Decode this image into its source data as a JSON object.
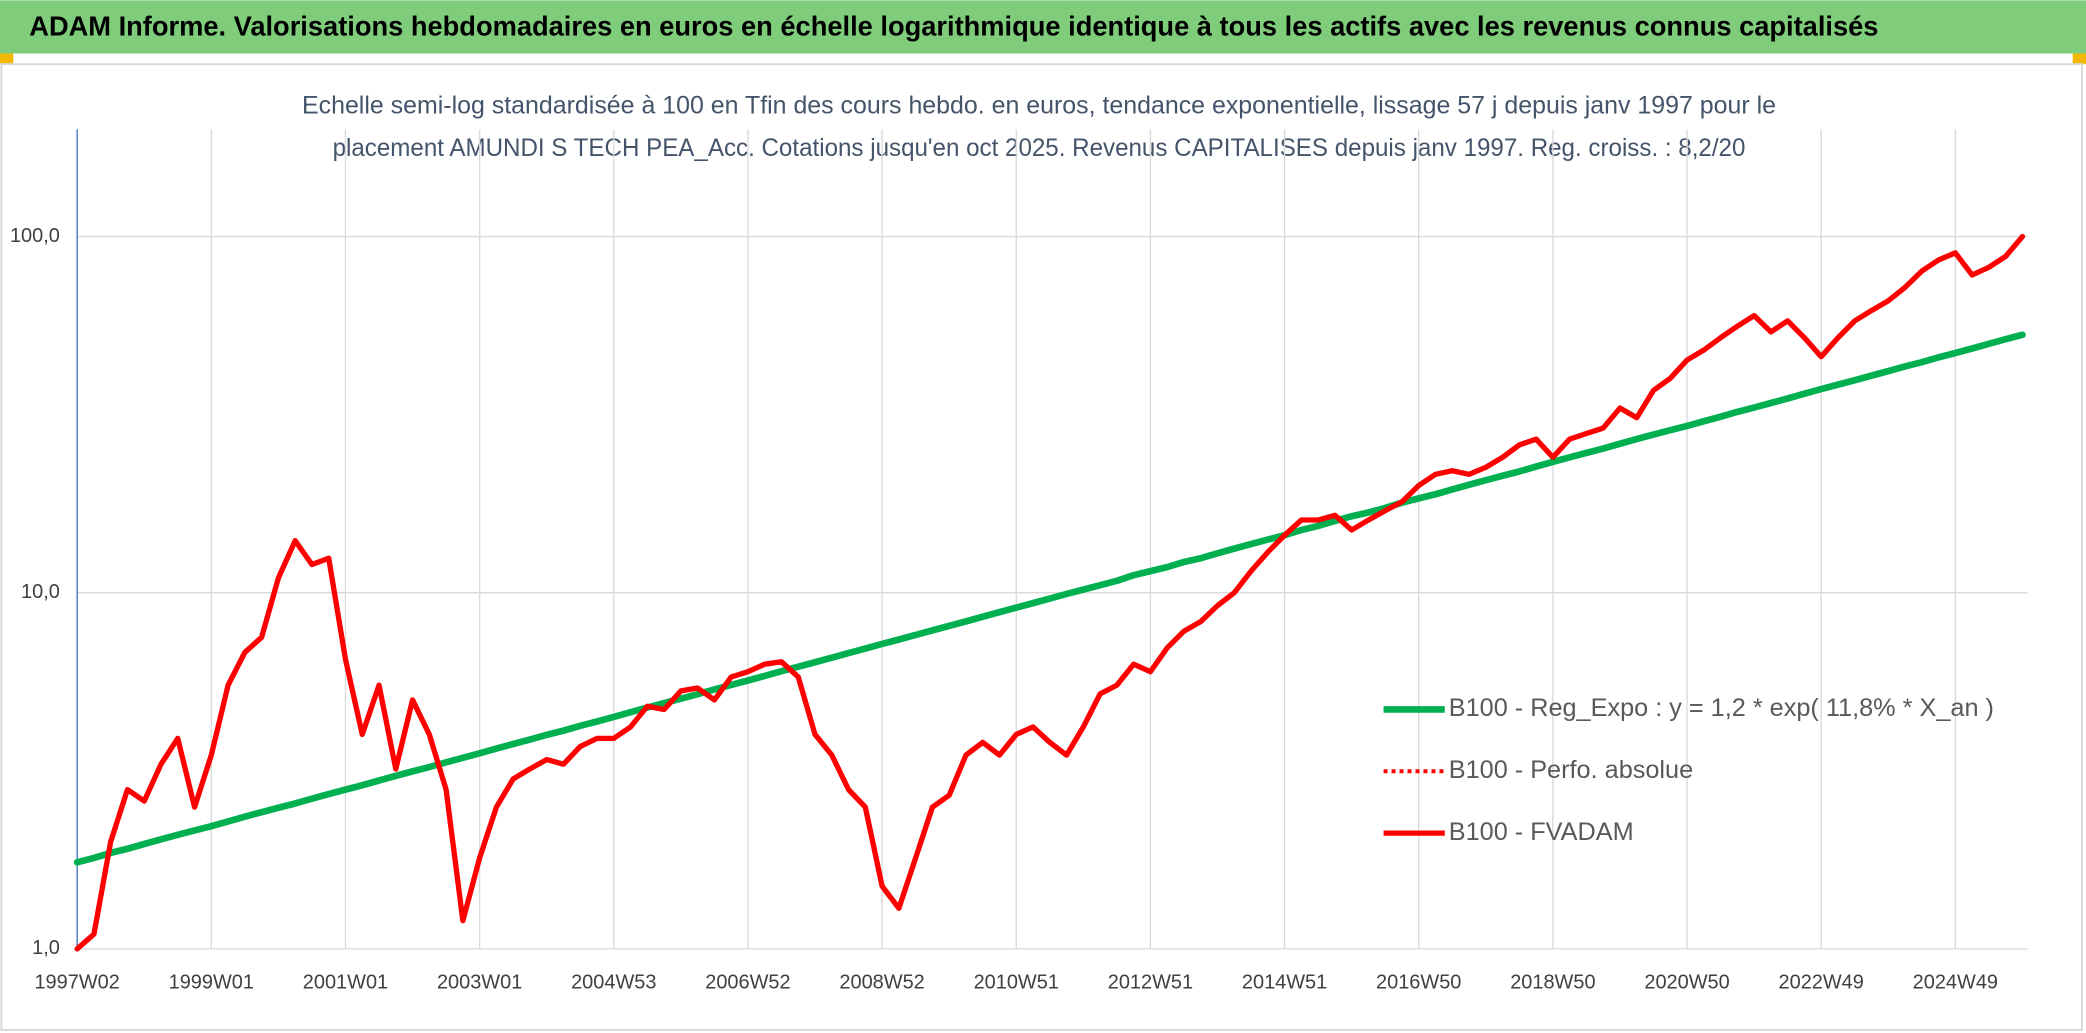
{
  "chart_data": {
    "type": "line",
    "title": "ADAM Informe. Valorisations hebdomadaires en euros en échelle logarithmique identique à tous les actifs avec les revenus connus capitalisés",
    "subtitle": [
      "Echelle semi-log standardisée à 100 en Tfin des cours hebdo. en euros, tendance exponentielle, lissage 57 j depuis janv 1997 pour le",
      "placement AMUNDI S TECH PEA_Acc. Cotations jusqu'en oct 2025. Revenus CAPITALISES depuis janv 1997. Reg. croiss. : 8,2/20"
    ],
    "log_scale": true,
    "grid": true,
    "legend": "right",
    "ylim": [
      1,
      200
    ],
    "yticks": [
      {
        "value": 1,
        "label": "1,0"
      },
      {
        "value": 10,
        "label": "10,0"
      },
      {
        "value": 100,
        "label": "100,0"
      }
    ],
    "categories": [
      "1997W02",
      null,
      null,
      null,
      null,
      null,
      null,
      null,
      "1999W01",
      null,
      null,
      null,
      null,
      null,
      null,
      null,
      "2001W01",
      null,
      null,
      null,
      null,
      null,
      null,
      null,
      "2003W01",
      null,
      null,
      null,
      null,
      null,
      null,
      null,
      "2004W53",
      null,
      null,
      null,
      null,
      null,
      null,
      null,
      "2006W52",
      null,
      null,
      null,
      null,
      null,
      null,
      null,
      "2008W52",
      null,
      null,
      null,
      null,
      null,
      null,
      null,
      "2010W51",
      null,
      null,
      null,
      null,
      null,
      null,
      null,
      "2012W51",
      null,
      null,
      null,
      null,
      null,
      null,
      null,
      "2014W51",
      null,
      null,
      null,
      null,
      null,
      null,
      null,
      "2016W50",
      null,
      null,
      null,
      null,
      null,
      null,
      null,
      "2018W50",
      null,
      null,
      null,
      null,
      null,
      null,
      null,
      "2020W50",
      null,
      null,
      null,
      null,
      null,
      null,
      null,
      "2022W49",
      null,
      null,
      null,
      null,
      null,
      null,
      null,
      "2024W49",
      null,
      null,
      null,
      null
    ],
    "series": [
      {
        "name": "B100 - Reg_Expo : y = 1,2 * exp( 11,8% *  X_an )",
        "color": "#00b050",
        "style": "solid",
        "values": [
          1.75,
          1.8,
          1.86,
          1.91,
          1.97,
          2.03,
          2.09,
          2.15,
          2.21,
          2.28,
          2.35,
          2.42,
          2.49,
          2.56,
          2.64,
          2.72,
          2.8,
          2.88,
          2.97,
          3.06,
          3.15,
          3.24,
          3.34,
          3.44,
          3.54,
          3.65,
          3.76,
          3.87,
          3.99,
          4.1,
          4.23,
          4.35,
          4.48,
          4.62,
          4.76,
          4.9,
          5.04,
          5.19,
          5.35,
          5.51,
          5.67,
          5.84,
          6.02,
          6.2,
          6.38,
          6.57,
          6.77,
          6.97,
          7.18,
          7.39,
          7.61,
          7.84,
          8.07,
          8.31,
          8.56,
          8.82,
          9.08,
          9.35,
          9.63,
          9.92,
          10.2,
          10.5,
          10.8,
          11.2,
          11.5,
          11.8,
          12.2,
          12.5,
          12.9,
          13.3,
          13.7,
          14.1,
          14.5,
          15.0,
          15.4,
          15.9,
          16.4,
          16.8,
          17.3,
          17.9,
          18.4,
          18.9,
          19.5,
          20.1,
          20.7,
          21.3,
          21.9,
          22.6,
          23.3,
          24.0,
          24.7,
          25.4,
          26.2,
          27.0,
          27.8,
          28.6,
          29.4,
          30.3,
          31.2,
          32.2,
          33.1,
          34.1,
          35.1,
          36.2,
          37.3,
          38.4,
          39.5,
          40.7,
          41.9,
          43.2,
          44.4,
          45.8,
          47.1,
          48.5,
          50.0,
          51.5,
          53.0
        ]
      },
      {
        "name": "B100 - Perfo. absolue",
        "color": "#ff0000",
        "style": "dotted",
        "values": [
          1.0,
          1.1,
          2.0,
          2.8,
          2.6,
          3.3,
          3.9,
          2.5,
          3.5,
          5.5,
          6.8,
          7.5,
          11,
          14,
          12,
          12.5,
          6.5,
          4.0,
          5.5,
          3.2,
          5.0,
          4.0,
          2.8,
          1.2,
          1.8,
          2.5,
          3.0,
          3.2,
          3.4,
          3.3,
          3.7,
          3.9,
          3.9,
          4.2,
          4.8,
          4.7,
          5.3,
          5.4,
          5.0,
          5.8,
          6.0,
          6.3,
          6.4,
          5.8,
          4.0,
          3.5,
          2.8,
          2.5,
          1.5,
          1.3,
          1.8,
          2.5,
          2.7,
          3.5,
          3.8,
          3.5,
          4.0,
          4.2,
          3.8,
          3.5,
          4.2,
          5.2,
          5.5,
          6.3,
          6.0,
          7.0,
          7.8,
          8.3,
          9.2,
          10,
          11.5,
          13,
          14.5,
          16,
          16,
          16.5,
          15,
          16,
          17,
          18,
          20,
          21.5,
          22,
          21.5,
          22.5,
          24,
          26,
          27,
          24,
          27,
          28,
          29,
          33,
          31,
          37,
          40,
          45,
          48,
          52,
          56,
          60,
          54,
          58,
          52,
          46,
          52,
          58,
          62,
          66,
          72,
          80,
          86,
          90,
          78,
          82,
          88,
          100
        ]
      },
      {
        "name": "B100 - FVADAM",
        "color": "#ff0000",
        "style": "solid",
        "values": [
          1.0,
          1.1,
          2.0,
          2.8,
          2.6,
          3.3,
          3.9,
          2.5,
          3.5,
          5.5,
          6.8,
          7.5,
          11,
          14,
          12,
          12.5,
          6.5,
          4.0,
          5.5,
          3.2,
          5.0,
          4.0,
          2.8,
          1.2,
          1.8,
          2.5,
          3.0,
          3.2,
          3.4,
          3.3,
          3.7,
          3.9,
          3.9,
          4.2,
          4.8,
          4.7,
          5.3,
          5.4,
          5.0,
          5.8,
          6.0,
          6.3,
          6.4,
          5.8,
          4.0,
          3.5,
          2.8,
          2.5,
          1.5,
          1.3,
          1.8,
          2.5,
          2.7,
          3.5,
          3.8,
          3.5,
          4.0,
          4.2,
          3.8,
          3.5,
          4.2,
          5.2,
          5.5,
          6.3,
          6.0,
          7.0,
          7.8,
          8.3,
          9.2,
          10,
          11.5,
          13,
          14.5,
          16,
          16,
          16.5,
          15,
          16,
          17,
          18,
          20,
          21.5,
          22,
          21.5,
          22.5,
          24,
          26,
          27,
          24,
          27,
          28,
          29,
          33,
          31,
          37,
          40,
          45,
          48,
          52,
          56,
          60,
          54,
          58,
          52,
          46,
          52,
          58,
          62,
          66,
          72,
          80,
          86,
          90,
          78,
          82,
          88,
          100
        ]
      }
    ]
  }
}
